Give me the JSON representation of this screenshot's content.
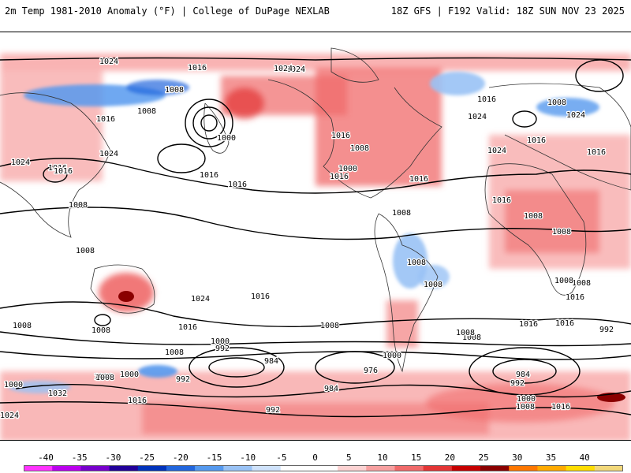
{
  "header": {
    "left_title": "2m Temp 1981-2010 Anomaly (°F) | College of DuPage NEXLAB",
    "right_title": "18Z GFS | F192 Valid: 18Z SUN NOV 23 2025"
  },
  "legend": {
    "ticks": [
      "-40",
      "-35",
      "-30",
      "-25",
      "-20",
      "-15",
      "-10",
      "-5",
      "0",
      "5",
      "10",
      "15",
      "20",
      "25",
      "30",
      "35",
      "40"
    ],
    "colors": [
      "#ff33ff",
      "#bb00ee",
      "#7700cc",
      "#220099",
      "#0033bb",
      "#2266dd",
      "#5599ee",
      "#99c2f5",
      "#cfe2fb",
      "#ffffff",
      "#ffffff",
      "#fcd2d2",
      "#f7a0a0",
      "#f06a6a",
      "#e33535",
      "#c60000",
      "#8a0000",
      "#ff7700",
      "#ffaa00",
      "#ffdd00",
      "#f2d87a"
    ]
  },
  "map": {
    "contour_labels": [
      "1024",
      "1016",
      "1024",
      "1008",
      "1016",
      "1008",
      "1000",
      "1016",
      "1016",
      "1024",
      "1016",
      "1008",
      "1024",
      "1016",
      "1008",
      "1016",
      "1000",
      "1008",
      "1024",
      "1024",
      "1016",
      "1024",
      "1016",
      "1016",
      "1008",
      "1016",
      "1016",
      "1008",
      "1008",
      "1008",
      "1008",
      "1008",
      "1016",
      "1008",
      "1008",
      "1016",
      "1008",
      "1016",
      "1016",
      "1008",
      "1024",
      "1008",
      "992",
      "1000",
      "992",
      "1008",
      "1016",
      "1008",
      "1000",
      "1008",
      "1016",
      "984",
      "976",
      "1000",
      "984",
      "992",
      "1000",
      "1008",
      "1016",
      "1032",
      "1016",
      "992",
      "1024",
      "1000",
      "992",
      "984",
      "1024",
      "1008",
      "1008"
    ]
  }
}
